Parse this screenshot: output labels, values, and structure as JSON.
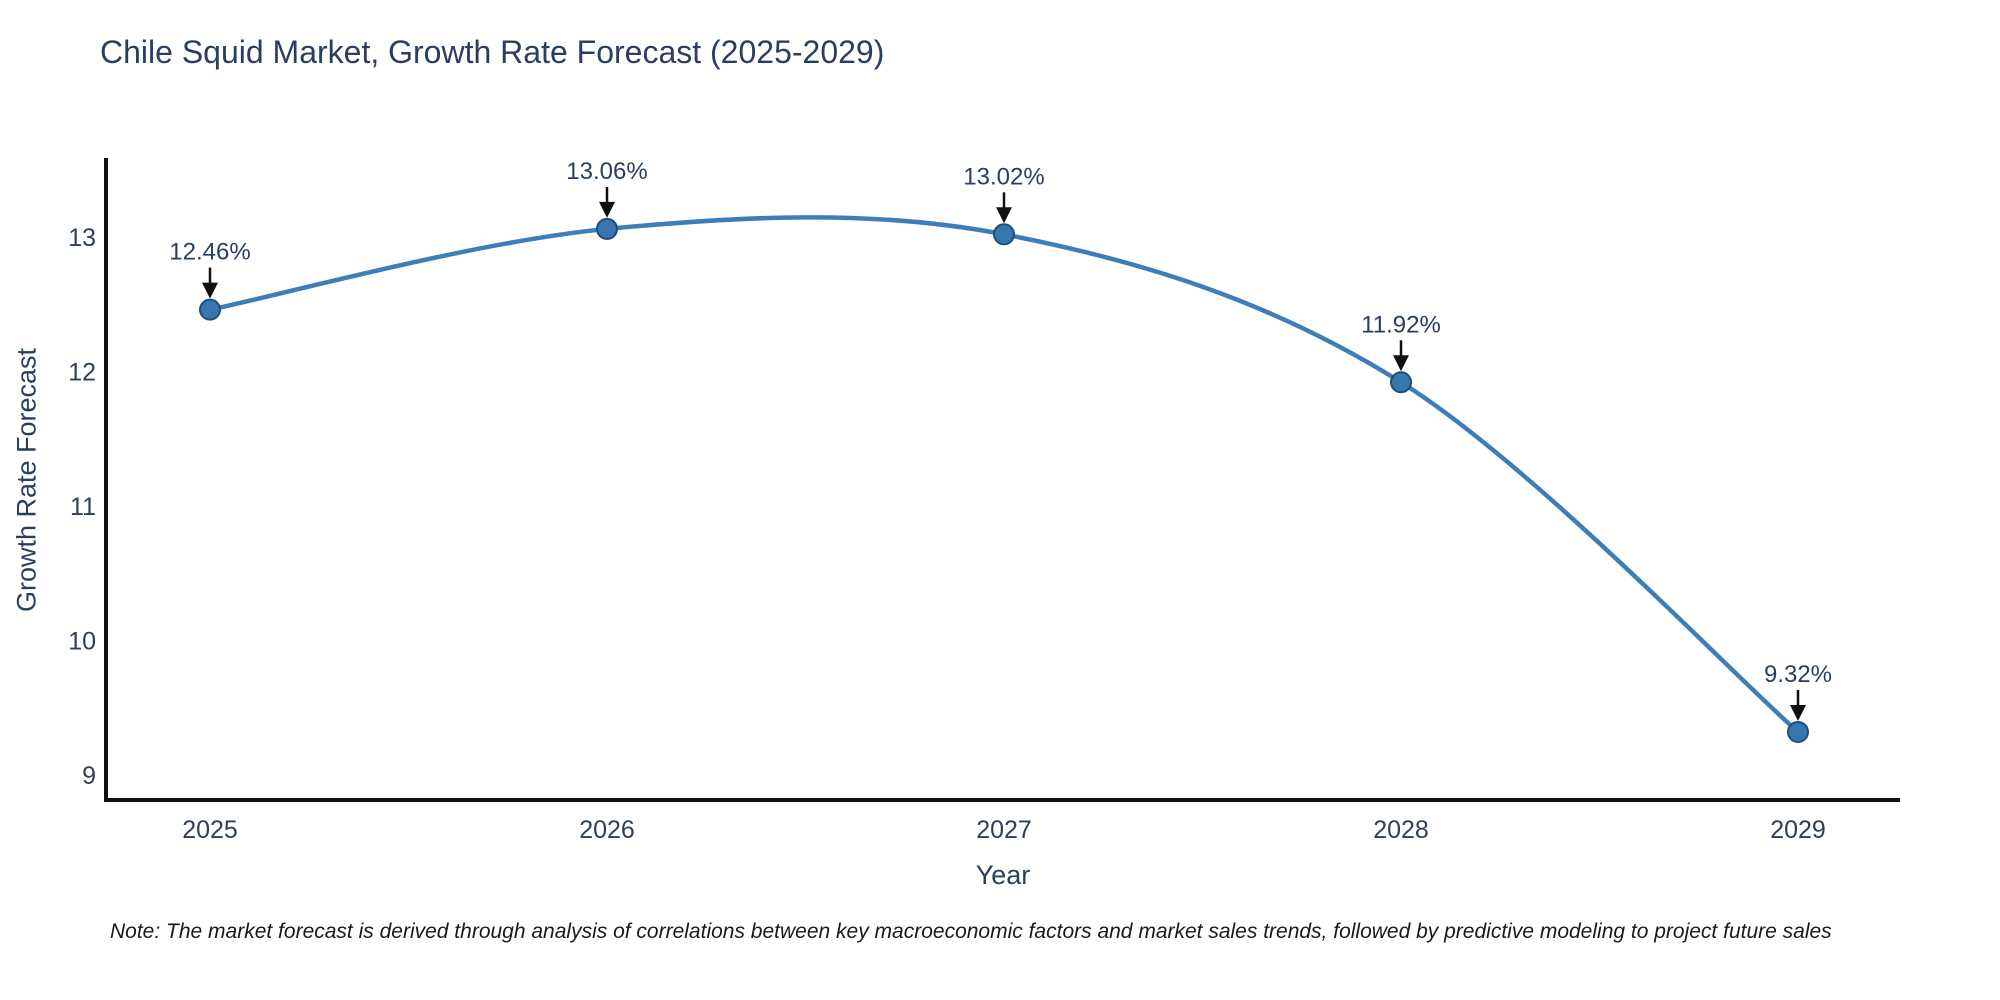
{
  "title": "Chile Squid Market, Growth Rate Forecast (2025-2029)",
  "note": "Note: The market forecast is derived through analysis of correlations between key macroeconomic factors and market sales trends, followed by predictive modeling to project future sales",
  "colors": {
    "line": "#3e7eb8",
    "marker_fill": "#3876ae",
    "marker_edge": "#1f4e79",
    "axis": "#111111",
    "tick_text": "#2f3f55",
    "title_text": "#2a3f5f",
    "annotation_text": "#2a3f5f",
    "arrow": "#111111"
  },
  "chart_data": {
    "type": "line",
    "title": "Chile Squid Market, Growth Rate Forecast (2025-2029)",
    "xlabel": "Year",
    "ylabel": "Growth Rate Forecast",
    "x": [
      2025,
      2026,
      2027,
      2028,
      2029
    ],
    "series": [
      {
        "name": "Growth Rate Forecast",
        "values": [
          12.46,
          13.06,
          13.02,
          11.92,
          9.32
        ],
        "point_labels": [
          "12.46%",
          "13.06%",
          "13.02%",
          "11.92%",
          "9.32%"
        ]
      }
    ],
    "xticks": [
      "2025",
      "2026",
      "2027",
      "2028",
      "2029"
    ],
    "yticks": [
      9,
      10,
      11,
      12,
      13
    ],
    "ylim": [
      8.81,
      13.47
    ],
    "grid": false,
    "legend": "none",
    "line_shape": "spline",
    "markers": true,
    "annotations": "value labels with downward arrows above each point"
  }
}
